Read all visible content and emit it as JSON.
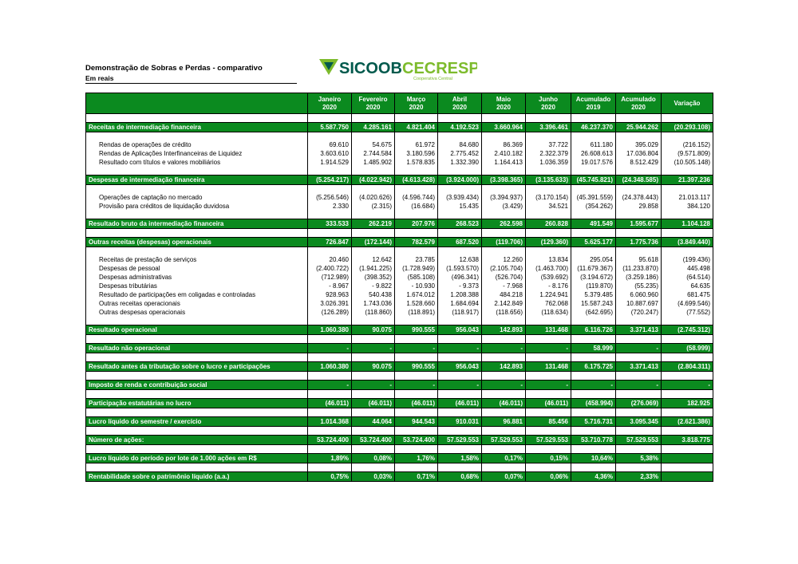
{
  "header": {
    "title": "Demonstração de Sobras e Perdas - comparativo",
    "subtitle": "Em reais"
  },
  "logo": {
    "brand": "SICOOB",
    "name": "CECRESP",
    "tagline": "Cooperativa Central"
  },
  "table": {
    "columns": [
      [
        "Janeiro",
        "2020"
      ],
      [
        "Fevereiro",
        "2020"
      ],
      [
        "Março",
        "2020"
      ],
      [
        "Abril",
        "2020"
      ],
      [
        "Maio",
        "2020"
      ],
      [
        "Junho",
        "2020"
      ],
      [
        "Acumulado",
        "2019"
      ],
      [
        "Acumulado",
        "2020"
      ],
      [
        "Variação"
      ]
    ],
    "rows": [
      {
        "style": "total",
        "label": "Receitas de intermediação financeira",
        "values": [
          "5.587.750",
          "4.285.161",
          "4.821.404",
          "4.192.523",
          "3.660.964",
          "3.396.461",
          "46.237.370",
          "25.944.262",
          "(20.293.108)"
        ]
      },
      {
        "style": "detail",
        "label": "Rendas de operações de crédito",
        "values": [
          "69.610",
          "54.675",
          "61.972",
          "84.680",
          "86.369",
          "37.722",
          "611.180",
          "395.029",
          "(216.152)"
        ]
      },
      {
        "style": "detail",
        "label": "Rendas de Aplicações Interfinanceiras de Liquidez",
        "values": [
          "3.603.610",
          "2.744.584",
          "3.180.596",
          "2.775.452",
          "2.410.182",
          "2.322.379",
          "26.608.613",
          "17.036.804",
          "(9.571.809)"
        ]
      },
      {
        "style": "detail",
        "label": "Resultado com títulos e valores mobiliários",
        "values": [
          "1.914.529",
          "1.485.902",
          "1.578.835",
          "1.332.390",
          "1.164.413",
          "1.036.359",
          "19.017.576",
          "8.512.429",
          "(10.505.148)"
        ]
      },
      {
        "style": "total",
        "label": "Despesas de intermediação financeira",
        "values": [
          "(5.254.217)",
          "(4.022.942)",
          "(4.613.428)",
          "(3.924.000)",
          "(3.398.365)",
          "(3.135.633)",
          "(45.745.821)",
          "(24.348.585)",
          "21.397.236"
        ]
      },
      {
        "style": "detail",
        "label": "Operações de captação no mercado",
        "values": [
          "(5.256.546)",
          "(4.020.626)",
          "(4.596.744)",
          "(3.939.434)",
          "(3.394.937)",
          "(3.170.154)",
          "(45.391.559)",
          "(24.378.443)",
          "21.013.117"
        ]
      },
      {
        "style": "detail",
        "label": "Provisão para créditos de liquidação duvidosa",
        "values": [
          "2.330",
          "(2.315)",
          "(16.684)",
          "15.435",
          "(3.429)",
          "34.521",
          "(354.262)",
          "29.858",
          "384.120"
        ]
      },
      {
        "style": "total",
        "label": "Resultado bruto da intermediação financeira",
        "values": [
          "333.533",
          "262.219",
          "207.976",
          "268.523",
          "262.598",
          "260.828",
          "491.549",
          "1.595.677",
          "1.104.128"
        ]
      },
      {
        "style": "total",
        "label": "Outras receitas (despesas) operacionais",
        "values": [
          "726.847",
          "(172.144)",
          "782.579",
          "687.520",
          "(119.706)",
          "(129.360)",
          "5.625.177",
          "1.775.736",
          "(3.849.440)"
        ]
      },
      {
        "style": "detail",
        "label": "Receitas de prestação de serviços",
        "values": [
          "20.460",
          "12.642",
          "23.785",
          "12.638",
          "12.260",
          "13.834",
          "295.054",
          "95.618",
          "(199.436)"
        ]
      },
      {
        "style": "detail",
        "label": "Despesas de pessoal",
        "values": [
          "(2.400.722)",
          "(1.941.225)",
          "(1.728.949)",
          "(1.593.570)",
          "(2.105.704)",
          "(1.463.700)",
          "(11.679.367)",
          "(11.233.870)",
          "445.498"
        ]
      },
      {
        "style": "detail",
        "label": "Despesas administrativas",
        "values": [
          "(712.989)",
          "(398.352)",
          "(585.108)",
          "(496.341)",
          "(526.704)",
          "(539.692)",
          "(3.194.672)",
          "(3.259.186)",
          "(64.514)"
        ]
      },
      {
        "style": "detail",
        "label": "Despesas tributárias",
        "values": [
          "- 8.967",
          "- 9.822",
          "- 10.930",
          "- 9.373",
          "- 7.968",
          "- 8.176",
          "(119.870)",
          "(55.235)",
          "64.635"
        ]
      },
      {
        "style": "detail",
        "label": "Resultado de participações em coligadas e controladas",
        "values": [
          "928.963",
          "540.438",
          "1.674.012",
          "1.208.388",
          "484.218",
          "1.224.941",
          "5.379.485",
          "6.060.960",
          "681.475"
        ]
      },
      {
        "style": "detail",
        "label": "Outras receitas operacionais",
        "values": [
          "3.026.391",
          "1.743.036",
          "1.528.660",
          "1.684.694",
          "2.142.849",
          "762.068",
          "15.587.243",
          "10.887.697",
          "(4.699.546)"
        ]
      },
      {
        "style": "detail",
        "label": "Outras despesas operacionais",
        "values": [
          "(126.289)",
          "(118.860)",
          "(118.891)",
          "(118.917)",
          "(118.656)",
          "(118.634)",
          "(642.695)",
          "(720.247)",
          "(77.552)"
        ]
      },
      {
        "style": "total",
        "label": "Resultado operacional",
        "values": [
          "1.060.380",
          "90.075",
          "990.555",
          "956.043",
          "142.893",
          "131.468",
          "6.116.726",
          "3.371.413",
          "(2.745.312)"
        ]
      },
      {
        "style": "total",
        "label": "Resultado não operacional",
        "values": [
          "-",
          "-",
          "-",
          "-",
          "-",
          "-",
          "58.999",
          "-",
          "(58.999)"
        ]
      },
      {
        "style": "total",
        "label": "Resultado antes da tributação sobre o lucro e participações",
        "values": [
          "1.060.380",
          "90.075",
          "990.555",
          "956.043",
          "142.893",
          "131.468",
          "6.175.725",
          "3.371.413",
          "(2.804.311)"
        ]
      },
      {
        "style": "total",
        "label": "Imposto de renda e contribuição social",
        "values": [
          "-",
          "-",
          "-",
          "-",
          "-",
          "-",
          "-",
          "-",
          "-"
        ]
      },
      {
        "style": "total",
        "label": "Participação estatutárias no lucro",
        "values": [
          "(46.011)",
          "(46.011)",
          "(46.011)",
          "(46.011)",
          "(46.011)",
          "(46.011)",
          "(458.994)",
          "(276.069)",
          "182.925"
        ]
      },
      {
        "style": "total",
        "label": "Lucro líquido do semestre / exercício",
        "values": [
          "1.014.368",
          "44.064",
          "944.543",
          "910.031",
          "96.881",
          "85.456",
          "5.716.731",
          "3.095.345",
          "(2.621.386)"
        ]
      },
      {
        "style": "total",
        "label": "Número de ações:",
        "values": [
          "53.724.400",
          "53.724.400",
          "53.724.400",
          "57.529.553",
          "57.529.553",
          "57.529.553",
          "53.710.778",
          "57.529.553",
          "3.818.775"
        ]
      },
      {
        "style": "total",
        "label": "Lucro líquido do período por lote de 1.000 ações em R$",
        "values": [
          "1,89%",
          "0,08%",
          "1,76%",
          "1,58%",
          "0,17%",
          "0,15%",
          "10,64%",
          "5,38%",
          null
        ]
      },
      {
        "style": "total",
        "label": "Rentabilidade sobre o patrimônio líquido (a.a.)",
        "values": [
          "0,75%",
          "0,03%",
          "0,71%",
          "0,68%",
          "0,07%",
          "0,06%",
          "4,36%",
          "2,33%",
          null
        ]
      }
    ]
  }
}
